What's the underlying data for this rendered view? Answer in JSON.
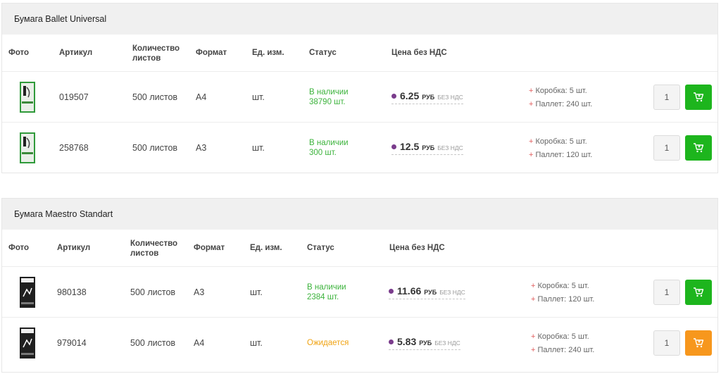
{
  "colors": {
    "in_stock": "#3cb33c",
    "expected": "#f0a312",
    "cart_green": "#1db51d",
    "cart_orange": "#f7971d",
    "price_dot": "#7a3c8c"
  },
  "headers": {
    "photo": "Фото",
    "sku": "Артикул",
    "sheets_1": "Количество",
    "sheets_2": "листов",
    "format": "Формат",
    "unit": "Ед. изм.",
    "status": "Статус",
    "price": "Цена без НДС"
  },
  "groups": [
    {
      "title": "Бумага Ballet Universal",
      "rows": [
        {
          "sku": "019507",
          "sheets": "500 листов",
          "format": "A4",
          "unit": "шт.",
          "status_1": "В наличии",
          "status_2": "38790 шт.",
          "price": "6.25",
          "currency": "РУБ",
          "vat": "БЕЗ НДС",
          "box": "Коробка: 5 шт.",
          "pallet": "Паллет: 240 шт.",
          "qty": "1"
        },
        {
          "sku": "258768",
          "sheets": "500 листов",
          "format": "A3",
          "unit": "шт.",
          "status_1": "В наличии",
          "status_2": "300 шт.",
          "price": "12.5",
          "currency": "РУБ",
          "vat": "БЕЗ НДС",
          "box": "Коробка: 5 шт.",
          "pallet": "Паллет: 120 шт.",
          "qty": "1"
        }
      ]
    },
    {
      "title": "Бумага Maestro Standart",
      "rows": [
        {
          "sku": "980138",
          "sheets": "500 листов",
          "format": "A3",
          "unit": "шт.",
          "status_1": "В наличии",
          "status_2": "2384 шт.",
          "price": "11.66",
          "currency": "РУБ",
          "vat": "БЕЗ НДС",
          "box": "Коробка: 5 шт.",
          "pallet": "Паллет: 120 шт.",
          "qty": "1"
        },
        {
          "sku": "979014",
          "sheets": "500 листов",
          "format": "A4",
          "unit": "шт.",
          "status_1": "Ожидается",
          "status_2": "",
          "price": "5.83",
          "currency": "РУБ",
          "vat": "БЕЗ НДС",
          "box": "Коробка: 5 шт.",
          "pallet": "Паллет: 240 шт.",
          "qty": "1"
        }
      ]
    }
  ],
  "icons": {
    "cart": "cart-icon",
    "ballet_thumb": "ballet-paper-pack-image",
    "maestro_thumb": "maestro-paper-pack-image"
  }
}
